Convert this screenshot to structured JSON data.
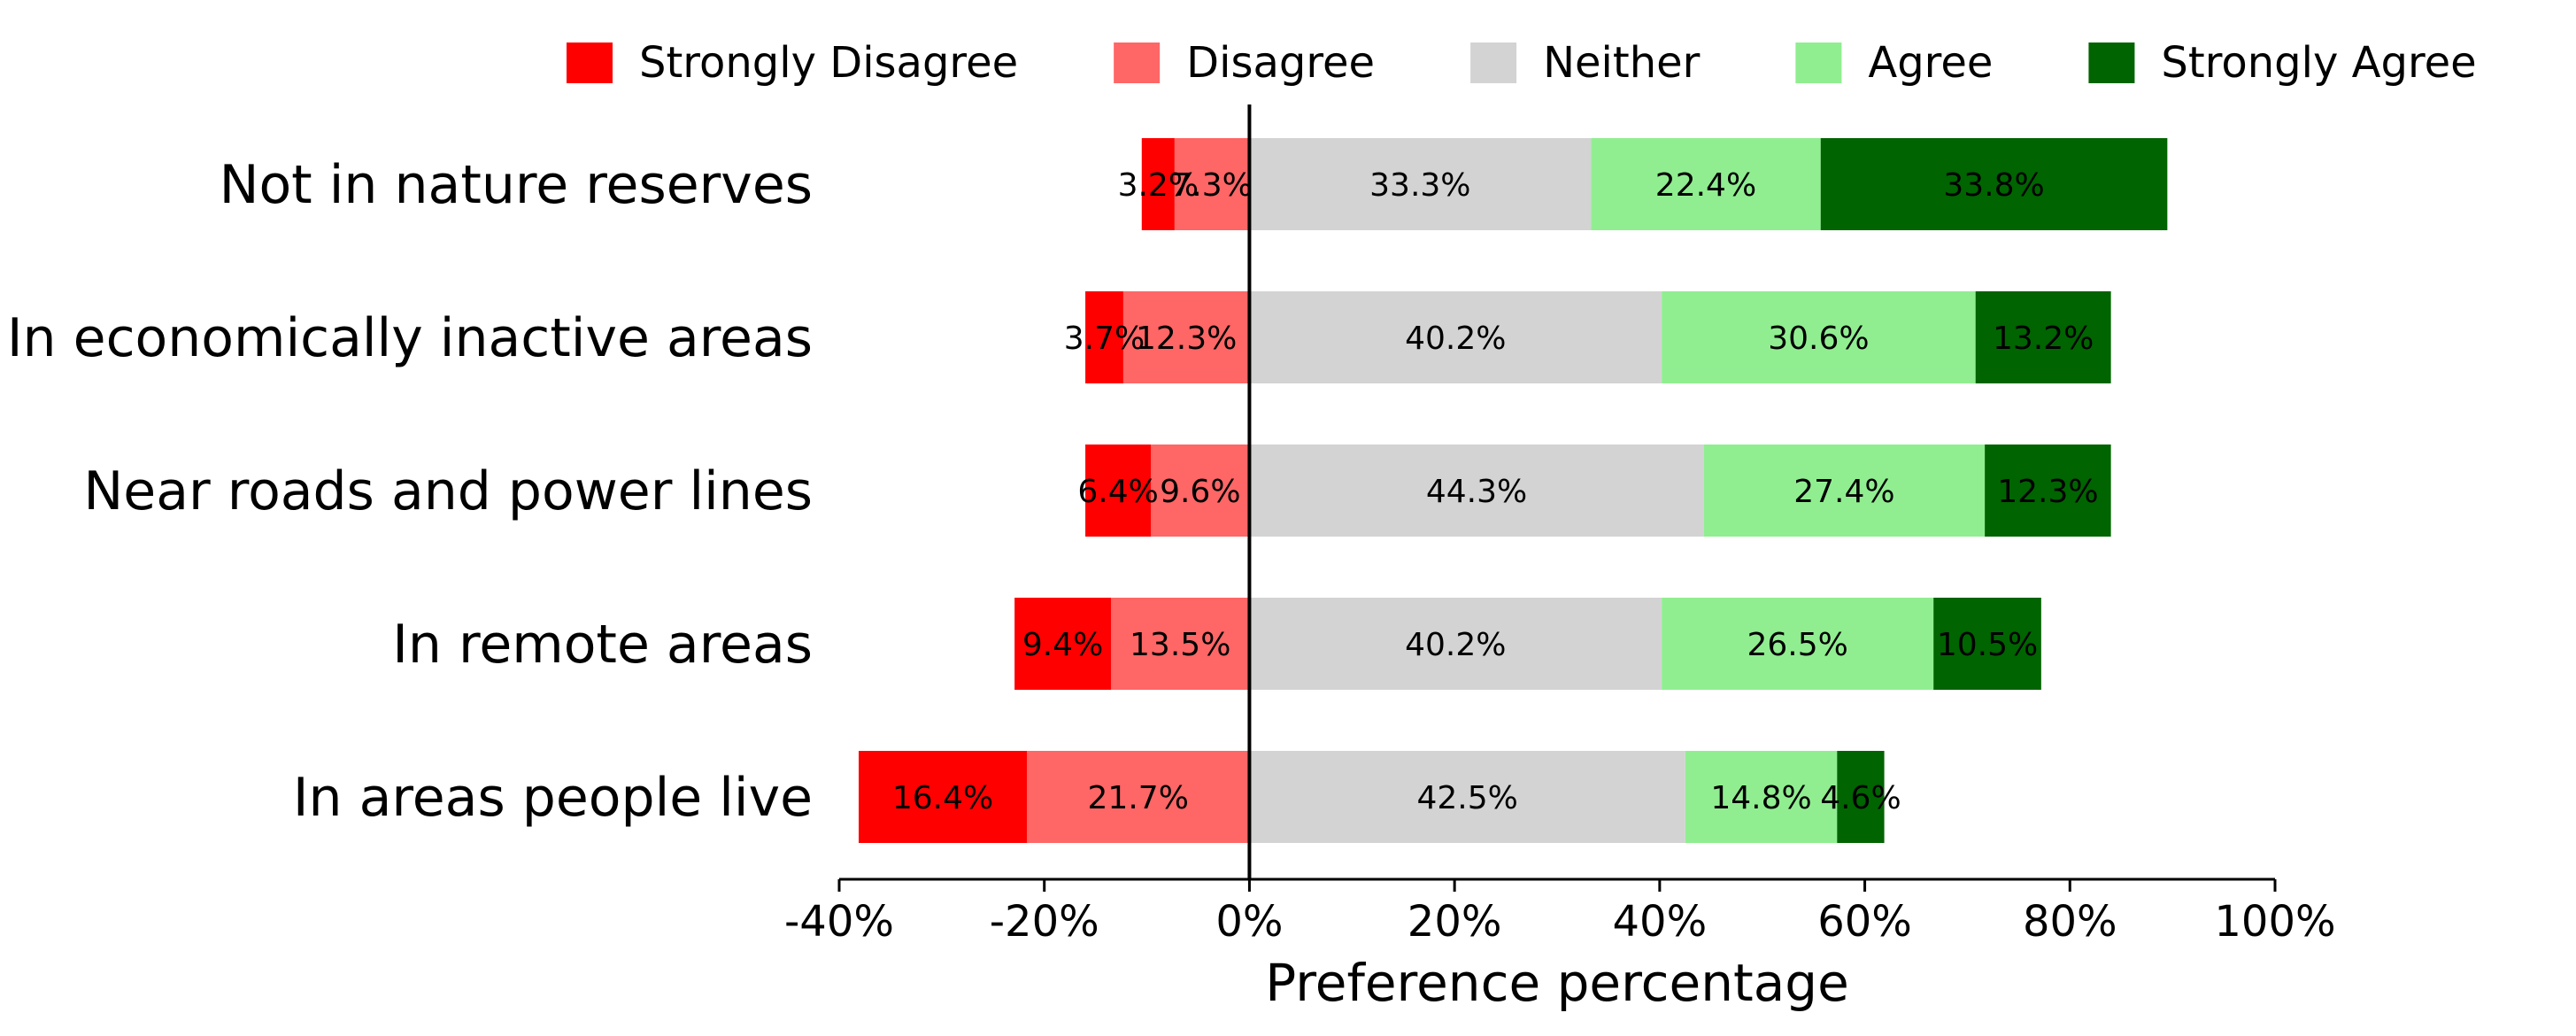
{
  "chart_data": {
    "type": "bar",
    "orientation": "horizontal",
    "stacked": "diverging",
    "categories": [
      "Not in nature reserves",
      "In economically inactive areas",
      "Near roads and power lines",
      "In remote areas",
      "In areas people live"
    ],
    "series": [
      {
        "name": "Strongly Disagree",
        "color": "#ff0000",
        "direction": "negative",
        "values": [
          3.2,
          3.7,
          6.4,
          9.4,
          16.4
        ],
        "labels": [
          "3.2%",
          "3.7%",
          "6.4%",
          "9.4%",
          "16.4%"
        ]
      },
      {
        "name": "Disagree",
        "color": "#ff6666",
        "direction": "negative",
        "values": [
          7.3,
          12.3,
          9.6,
          13.5,
          21.7
        ],
        "labels": [
          "7.3%",
          "12.3%",
          "9.6%",
          "13.5%",
          "21.7%"
        ]
      },
      {
        "name": "Neither",
        "color": "#d3d3d3",
        "direction": "positive",
        "values": [
          33.3,
          40.2,
          44.3,
          40.2,
          42.5
        ],
        "labels": [
          "33.3%",
          "40.2%",
          "44.3%",
          "40.2%",
          "42.5%"
        ]
      },
      {
        "name": "Agree",
        "color": "#90ee90",
        "direction": "positive",
        "values": [
          22.4,
          30.6,
          27.4,
          26.5,
          14.8
        ],
        "labels": [
          "22.4%",
          "30.6%",
          "27.4%",
          "26.5%",
          "14.8%"
        ]
      },
      {
        "name": "Strongly Agree",
        "color": "#006400",
        "direction": "positive",
        "values": [
          33.8,
          13.2,
          12.3,
          10.5,
          4.6
        ],
        "labels": [
          "33.8%",
          "13.2%",
          "12.3%",
          "10.5%",
          "4.6%"
        ]
      }
    ],
    "xlabel": "Preference percentage",
    "xlim": [
      -40,
      100
    ],
    "xticks": [
      -40,
      -20,
      0,
      20,
      40,
      60,
      80,
      100
    ],
    "xtick_labels": [
      "-40%",
      "-20%",
      "0%",
      "20%",
      "40%",
      "60%",
      "80%",
      "100%"
    ],
    "legend": {
      "position": "top",
      "columns": 5
    },
    "grid": false,
    "zero_line": true
  }
}
